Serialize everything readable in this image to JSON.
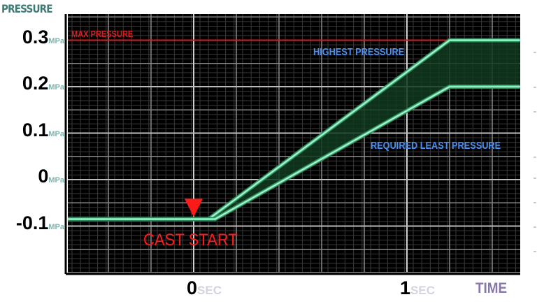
{
  "chart_data": {
    "type": "line",
    "title": "",
    "ylabel": "PRESSURE",
    "xlabel": "TIME",
    "y_unit": "MPa",
    "x_unit": "SEC",
    "xlim": [
      -0.59,
      1.53
    ],
    "ylim": [
      -0.2,
      0.357
    ],
    "grid": true,
    "y_ticks": [
      {
        "value": 0.3,
        "label": "0.3"
      },
      {
        "value": 0.2,
        "label": "0.2"
      },
      {
        "value": 0.1,
        "label": "0.1"
      },
      {
        "value": 0,
        "label": "0"
      },
      {
        "value": -0.1,
        "label": "-0.1"
      }
    ],
    "x_ticks": [
      {
        "value": 0,
        "label": "0"
      },
      {
        "value": 1,
        "label": "1"
      }
    ],
    "series": [
      {
        "name": "HIGHEST PRESSURE",
        "x": [
          -0.59,
          0.07,
          1.2,
          1.53
        ],
        "y": [
          -0.085,
          -0.085,
          0.3,
          0.3
        ]
      },
      {
        "name": "REQUIRED LEAST PRESSURE",
        "x": [
          -0.59,
          0.1,
          1.2,
          1.53
        ],
        "y": [
          -0.085,
          -0.085,
          0.2,
          0.2
        ]
      }
    ],
    "reference_line": {
      "label": "MAX PRESSURE",
      "y": 0.3,
      "color": "#d42020"
    },
    "annotation": {
      "label": "CAST START",
      "x": 0,
      "y": -0.085,
      "color": "#ff1a1a"
    },
    "colors": {
      "background": "#000000",
      "line": "#6fe0a8",
      "band_fill": "#0f3a1e",
      "series_label": "#4a90f0",
      "grid": "#8a8a8a"
    }
  }
}
